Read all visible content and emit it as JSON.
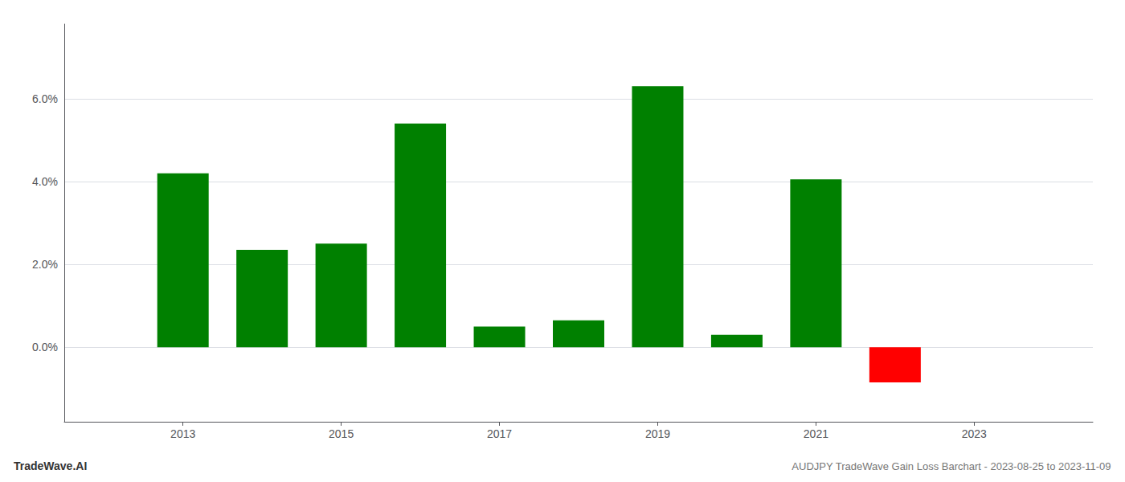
{
  "chart_data": {
    "type": "bar",
    "title": "AUDJPY TradeWave Gain Loss Barchart - 2023-08-25 to 2023-11-09",
    "annotations": [
      "TradeWave.AI"
    ],
    "x": [
      2013,
      2014,
      2015,
      2016,
      2017,
      2018,
      2019,
      2020,
      2021,
      2022
    ],
    "values": [
      0.042,
      0.0235,
      0.025,
      0.054,
      0.005,
      0.0065,
      0.063,
      0.003,
      0.0405,
      -0.0085
    ],
    "colors": [
      "#008000",
      "#008000",
      "#008000",
      "#008000",
      "#008000",
      "#008000",
      "#008000",
      "#008000",
      "#008000",
      "#ff0000"
    ],
    "xlim": [
      2011.5,
      2024.5
    ],
    "xticks": [
      2013,
      2015,
      2017,
      2019,
      2021,
      2023
    ],
    "ylim": [
      -0.018,
      0.078
    ],
    "yticks": [
      {
        "value": 0,
        "label": "0.0%"
      },
      {
        "value": 0.02,
        "label": "2.0%"
      },
      {
        "value": 0.04,
        "label": "4.0%"
      },
      {
        "value": 0.06,
        "label": "6.0%"
      }
    ],
    "grid": true
  }
}
